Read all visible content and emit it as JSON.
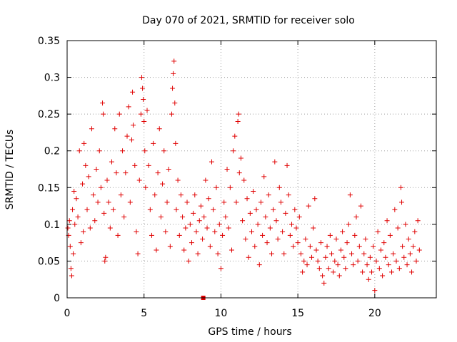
{
  "chart_data": {
    "type": "scatter",
    "title": "Day 070 of 2021, SRMTID for receiver solo",
    "xlabel": "GPS time / hours",
    "ylabel": "SRMTID / TECUs",
    "xlim": [
      0,
      24
    ],
    "ylim": [
      0,
      0.35
    ],
    "xticks": [
      0,
      5,
      10,
      15,
      20
    ],
    "xtick_labels": [
      "0",
      "5",
      "10",
      "15",
      "20"
    ],
    "yticks": [
      0,
      0.05,
      0.1,
      0.15,
      0.2,
      0.25,
      0.3,
      0.35
    ],
    "ytick_labels": [
      "0",
      "0.05",
      "0.1",
      "0.15",
      "0.2",
      "0.25",
      "0.3",
      "0.35"
    ],
    "grid": true,
    "marker": "plus",
    "color": "#e00000",
    "series": [
      {
        "name": "SRMTID",
        "points": [
          [
            0.05,
            0.095
          ],
          [
            0.1,
            0.085
          ],
          [
            0.15,
            0.105
          ],
          [
            0.2,
            0.07
          ],
          [
            0.25,
            0.04
          ],
          [
            0.3,
            0.03
          ],
          [
            0.35,
            0.12
          ],
          [
            0.4,
            0.06
          ],
          [
            0.45,
            0.145
          ],
          [
            0.5,
            0.1
          ],
          [
            0.6,
            0.135
          ],
          [
            0.7,
            0.11
          ],
          [
            0.8,
            0.2
          ],
          [
            0.9,
            0.075
          ],
          [
            1.0,
            0.155
          ],
          [
            1.05,
            0.09
          ],
          [
            1.1,
            0.21
          ],
          [
            1.2,
            0.18
          ],
          [
            1.3,
            0.12
          ],
          [
            1.4,
            0.165
          ],
          [
            1.5,
            0.095
          ],
          [
            1.6,
            0.23
          ],
          [
            1.7,
            0.14
          ],
          [
            1.8,
            0.105
          ],
          [
            1.9,
            0.175
          ],
          [
            2.0,
            0.13
          ],
          [
            2.1,
            0.2
          ],
          [
            2.2,
            0.15
          ],
          [
            2.3,
            0.265
          ],
          [
            2.35,
            0.25
          ],
          [
            2.4,
            0.115
          ],
          [
            2.45,
            0.05
          ],
          [
            2.5,
            0.055
          ],
          [
            2.6,
            0.16
          ],
          [
            2.7,
            0.13
          ],
          [
            2.8,
            0.095
          ],
          [
            2.9,
            0.185
          ],
          [
            3.0,
            0.12
          ],
          [
            3.1,
            0.23
          ],
          [
            3.2,
            0.17
          ],
          [
            3.3,
            0.085
          ],
          [
            3.4,
            0.25
          ],
          [
            3.5,
            0.14
          ],
          [
            3.6,
            0.2
          ],
          [
            3.7,
            0.11
          ],
          [
            3.8,
            0.17
          ],
          [
            3.9,
            0.22
          ],
          [
            4.0,
            0.26
          ],
          [
            4.1,
            0.13
          ],
          [
            4.2,
            0.215
          ],
          [
            4.25,
            0.28
          ],
          [
            4.3,
            0.235
          ],
          [
            4.4,
            0.18
          ],
          [
            4.5,
            0.09
          ],
          [
            4.6,
            0.06
          ],
          [
            4.7,
            0.16
          ],
          [
            4.8,
            0.25
          ],
          [
            4.85,
            0.3
          ],
          [
            4.9,
            0.285
          ],
          [
            4.95,
            0.27
          ],
          [
            5.0,
            0.24
          ],
          [
            5.05,
            0.2
          ],
          [
            5.1,
            0.15
          ],
          [
            5.2,
            0.255
          ],
          [
            5.3,
            0.18
          ],
          [
            5.4,
            0.12
          ],
          [
            5.5,
            0.085
          ],
          [
            5.6,
            0.21
          ],
          [
            5.7,
            0.14
          ],
          [
            5.8,
            0.065
          ],
          [
            5.9,
            0.17
          ],
          [
            6.0,
            0.23
          ],
          [
            6.1,
            0.11
          ],
          [
            6.2,
            0.155
          ],
          [
            6.3,
            0.2
          ],
          [
            6.4,
            0.09
          ],
          [
            6.5,
            0.13
          ],
          [
            6.6,
            0.175
          ],
          [
            6.7,
            0.07
          ],
          [
            6.8,
            0.25
          ],
          [
            6.85,
            0.285
          ],
          [
            6.9,
            0.305
          ],
          [
            6.95,
            0.322
          ],
          [
            7.0,
            0.265
          ],
          [
            7.05,
            0.21
          ],
          [
            7.1,
            0.12
          ],
          [
            7.2,
            0.16
          ],
          [
            7.3,
            0.085
          ],
          [
            7.4,
            0.14
          ],
          [
            7.5,
            0.11
          ],
          [
            7.6,
            0.065
          ],
          [
            7.7,
            0.095
          ],
          [
            7.8,
            0.13
          ],
          [
            7.9,
            0.05
          ],
          [
            8.0,
            0.1
          ],
          [
            8.1,
            0.075
          ],
          [
            8.2,
            0.115
          ],
          [
            8.3,
            0.14
          ],
          [
            8.4,
            0.09
          ],
          [
            8.5,
            0.06
          ],
          [
            8.6,
            0.105
          ],
          [
            8.7,
            0.125
          ],
          [
            8.8,
            0.08
          ],
          [
            8.9,
            0.11
          ],
          [
            9.0,
            0.16
          ],
          [
            9.1,
            0.095
          ],
          [
            9.2,
            0.135
          ],
          [
            9.3,
            0.07
          ],
          [
            9.4,
            0.185
          ],
          [
            9.5,
            0.12
          ],
          [
            9.6,
            0.09
          ],
          [
            9.7,
            0.15
          ],
          [
            9.8,
            0.06
          ],
          [
            9.9,
            0.1
          ],
          [
            10.0,
            0.04
          ],
          [
            10.1,
            0.085
          ],
          [
            10.2,
            0.13
          ],
          [
            10.3,
            0.11
          ],
          [
            10.4,
            0.175
          ],
          [
            10.5,
            0.095
          ],
          [
            10.6,
            0.15
          ],
          [
            10.7,
            0.065
          ],
          [
            10.8,
            0.2
          ],
          [
            10.9,
            0.22
          ],
          [
            11.0,
            0.13
          ],
          [
            11.1,
            0.24
          ],
          [
            11.15,
            0.25
          ],
          [
            11.2,
            0.17
          ],
          [
            11.3,
            0.19
          ],
          [
            11.4,
            0.105
          ],
          [
            11.5,
            0.16
          ],
          [
            11.6,
            0.08
          ],
          [
            11.7,
            0.135
          ],
          [
            11.8,
            0.055
          ],
          [
            11.9,
            0.115
          ],
          [
            12.0,
            0.09
          ],
          [
            12.1,
            0.145
          ],
          [
            12.2,
            0.07
          ],
          [
            12.3,
            0.12
          ],
          [
            12.4,
            0.1
          ],
          [
            12.5,
            0.045
          ],
          [
            12.6,
            0.13
          ],
          [
            12.7,
            0.085
          ],
          [
            12.8,
            0.165
          ],
          [
            12.9,
            0.11
          ],
          [
            13.0,
            0.075
          ],
          [
            13.1,
            0.14
          ],
          [
            13.2,
            0.095
          ],
          [
            13.3,
            0.06
          ],
          [
            13.4,
            0.12
          ],
          [
            13.5,
            0.185
          ],
          [
            13.6,
            0.105
          ],
          [
            13.7,
            0.08
          ],
          [
            13.8,
            0.15
          ],
          [
            13.9,
            0.13
          ],
          [
            14.0,
            0.09
          ],
          [
            14.1,
            0.06
          ],
          [
            14.2,
            0.115
          ],
          [
            14.3,
            0.18
          ],
          [
            14.4,
            0.14
          ],
          [
            14.5,
            0.085
          ],
          [
            14.6,
            0.1
          ],
          [
            14.7,
            0.07
          ],
          [
            14.8,
            0.12
          ],
          [
            14.9,
            0.095
          ],
          [
            15.0,
            0.075
          ],
          [
            15.1,
            0.11
          ],
          [
            15.2,
            0.06
          ],
          [
            15.3,
            0.035
          ],
          [
            15.4,
            0.05
          ],
          [
            15.5,
            0.08
          ],
          [
            15.6,
            0.045
          ],
          [
            15.7,
            0.125
          ],
          [
            15.8,
            0.07
          ],
          [
            15.9,
            0.055
          ],
          [
            16.0,
            0.095
          ],
          [
            16.1,
            0.135
          ],
          [
            16.2,
            0.065
          ],
          [
            16.3,
            0.05
          ],
          [
            16.4,
            0.04
          ],
          [
            16.5,
            0.075
          ],
          [
            16.6,
            0.03
          ],
          [
            16.7,
            0.02
          ],
          [
            16.8,
            0.055
          ],
          [
            16.9,
            0.07
          ],
          [
            17.0,
            0.04
          ],
          [
            17.1,
            0.085
          ],
          [
            17.2,
            0.06
          ],
          [
            17.3,
            0.035
          ],
          [
            17.4,
            0.05
          ],
          [
            17.5,
            0.08
          ],
          [
            17.6,
            0.045
          ],
          [
            17.7,
            0.03
          ],
          [
            17.8,
            0.065
          ],
          [
            17.9,
            0.09
          ],
          [
            18.0,
            0.055
          ],
          [
            18.1,
            0.04
          ],
          [
            18.2,
            0.075
          ],
          [
            18.3,
            0.1
          ],
          [
            18.4,
            0.14
          ],
          [
            18.5,
            0.06
          ],
          [
            18.6,
            0.045
          ],
          [
            18.7,
            0.085
          ],
          [
            18.8,
            0.11
          ],
          [
            18.9,
            0.05
          ],
          [
            19.0,
            0.07
          ],
          [
            19.1,
            0.125
          ],
          [
            19.2,
            0.035
          ],
          [
            19.3,
            0.06
          ],
          [
            19.4,
            0.08
          ],
          [
            19.5,
            0.045
          ],
          [
            19.6,
            0.025
          ],
          [
            19.7,
            0.055
          ],
          [
            19.8,
            0.035
          ],
          [
            19.9,
            0.07
          ],
          [
            20.0,
            0.01
          ],
          [
            20.1,
            0.05
          ],
          [
            20.2,
            0.09
          ],
          [
            20.3,
            0.04
          ],
          [
            20.4,
            0.065
          ],
          [
            20.5,
            0.03
          ],
          [
            20.6,
            0.075
          ],
          [
            20.7,
            0.055
          ],
          [
            20.8,
            0.105
          ],
          [
            20.9,
            0.045
          ],
          [
            21.0,
            0.085
          ],
          [
            21.1,
            0.035
          ],
          [
            21.2,
            0.06
          ],
          [
            21.3,
            0.12
          ],
          [
            21.4,
            0.05
          ],
          [
            21.5,
            0.095
          ],
          [
            21.6,
            0.04
          ],
          [
            21.7,
            0.15
          ],
          [
            21.75,
            0.13
          ],
          [
            21.8,
            0.07
          ],
          [
            21.9,
            0.055
          ],
          [
            22.0,
            0.1
          ],
          [
            22.1,
            0.045
          ],
          [
            22.2,
            0.08
          ],
          [
            22.3,
            0.06
          ],
          [
            22.4,
            0.035
          ],
          [
            22.5,
            0.07
          ],
          [
            22.6,
            0.09
          ],
          [
            22.7,
            0.05
          ],
          [
            22.8,
            0.105
          ],
          [
            22.9,
            0.065
          ]
        ]
      }
    ],
    "outlier_markers": [
      [
        8.85,
        0.0
      ]
    ]
  }
}
